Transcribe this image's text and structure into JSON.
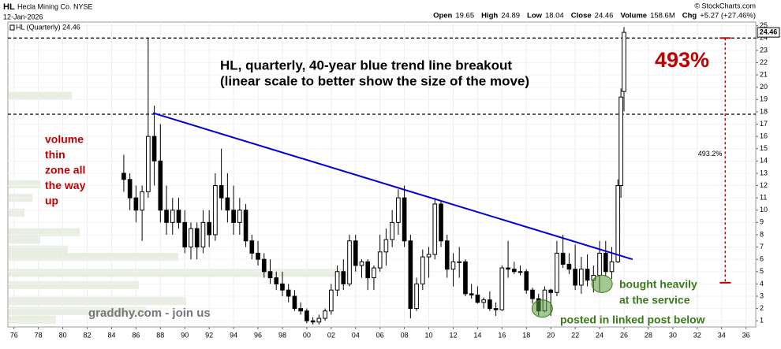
{
  "chart_data": {
    "type": "candlestick",
    "header": {
      "symbol": "HL",
      "company": "Hecla Mining Co. NYSE",
      "date": "12-Jan-2026",
      "copyright": "© StockCharts.com",
      "quote": [
        {
          "label": "Open",
          "value": "19.65"
        },
        {
          "label": "High",
          "value": "24.89"
        },
        {
          "label": "Low",
          "value": "18.04"
        },
        {
          "label": "Close",
          "value": "24.46"
        },
        {
          "label": "Volume",
          "value": "158.6M"
        },
        {
          "label": "Chg",
          "value": "+5.27 (+27.46%)"
        }
      ]
    },
    "legend": "HL (Quarterly) 24.46",
    "last_price": {
      "value": 24.46,
      "label": "24.46"
    },
    "title": [
      "HL, quarterly, 40-year blue trend line breakout",
      "(linear scale to better show the size of the move)"
    ],
    "annotations": {
      "gain": "493%",
      "volume_note": [
        "volume",
        "thin",
        "zone all",
        "the way",
        "up"
      ],
      "site": "graddhy.com - join us",
      "bought": [
        "bought heavily",
        "at the service"
      ],
      "posted": "posted in linked post below"
    },
    "xlim": [
      1975.5,
      2036.8
    ],
    "ylim": [
      0.5,
      25.3
    ],
    "xticks": [
      {
        "value": 1976,
        "label": "76"
      },
      {
        "value": 1978,
        "label": "78"
      },
      {
        "value": 1980,
        "label": "80"
      },
      {
        "value": 1982,
        "label": "82"
      },
      {
        "value": 1984,
        "label": "84"
      },
      {
        "value": 1986,
        "label": "86"
      },
      {
        "value": 1988,
        "label": "88"
      },
      {
        "value": 1990,
        "label": "90"
      },
      {
        "value": 1992,
        "label": "92"
      },
      {
        "value": 1994,
        "label": "94"
      },
      {
        "value": 1996,
        "label": "96"
      },
      {
        "value": 1998,
        "label": "98"
      },
      {
        "value": 2000,
        "label": "00"
      },
      {
        "value": 2002,
        "label": "02"
      },
      {
        "value": 2004,
        "label": "04"
      },
      {
        "value": 2006,
        "label": "06"
      },
      {
        "value": 2008,
        "label": "08"
      },
      {
        "value": 2010,
        "label": "10"
      },
      {
        "value": 2012,
        "label": "12"
      },
      {
        "value": 2014,
        "label": "14"
      },
      {
        "value": 2016,
        "label": "16"
      },
      {
        "value": 2018,
        "label": "18"
      },
      {
        "value": 2020,
        "label": "20"
      },
      {
        "value": 2022,
        "label": "22"
      },
      {
        "value": 2024,
        "label": "24"
      },
      {
        "value": 2026,
        "label": "26"
      },
      {
        "value": 2028,
        "label": "28"
      },
      {
        "value": 2030,
        "label": "30"
      },
      {
        "value": 2032,
        "label": "32"
      },
      {
        "value": 2034,
        "label": "34"
      },
      {
        "value": 2036,
        "label": "36"
      }
    ],
    "yticks": [
      1,
      2,
      3,
      4,
      5,
      6,
      7,
      8,
      9,
      10,
      11,
      12,
      13,
      14,
      15,
      16,
      17,
      18,
      19,
      20,
      21,
      22,
      23,
      24,
      25
    ],
    "grid": true,
    "x": [
      1985,
      1985.5,
      1986,
      1986.5,
      1987,
      1987.5,
      1988,
      1988.5,
      1989,
      1989.5,
      1990,
      1990.5,
      1991,
      1991.5,
      1992,
      1992.5,
      1993,
      1993.5,
      1994,
      1994.5,
      1995,
      1995.5,
      1996,
      1996.5,
      1997,
      1997.5,
      1998,
      1998.5,
      1999,
      1999.5,
      2000,
      2000.5,
      2001,
      2001.5,
      2002,
      2002.5,
      2003,
      2003.5,
      2004,
      2004.5,
      2005,
      2005.5,
      2006,
      2006.5,
      2007,
      2007.5,
      2008,
      2008.5,
      2009,
      2009.5,
      2010,
      2010.5,
      2011,
      2011.5,
      2012,
      2012.5,
      2013,
      2013.5,
      2014,
      2014.5,
      2015,
      2015.5,
      2016,
      2016.5,
      2017,
      2017.5,
      2018,
      2018.5,
      2019,
      2019.5,
      2020,
      2020.5,
      2021,
      2021.5,
      2022,
      2022.5,
      2023,
      2023.5,
      2024,
      2024.5,
      2025,
      2025.5,
      2025.75,
      2026
    ],
    "open": [
      13,
      12.5,
      11,
      10,
      11.5,
      16,
      14,
      10,
      9,
      10,
      9,
      7,
      8.5,
      7,
      9,
      8,
      12,
      11,
      10,
      9,
      10,
      7.5,
      6.5,
      6,
      5,
      4.5,
      4,
      3.5,
      3,
      2,
      1.8,
      1,
      0.9,
      1.2,
      1.8,
      3.5,
      5,
      4,
      7.5,
      5.5,
      5.8,
      4.5,
      5.3,
      6.6,
      7.6,
      9,
      11,
      7.5,
      2,
      4,
      6.2,
      6.4,
      10.5,
      7.5,
      5.2,
      5.8,
      5.8,
      3.2,
      3.1,
      2.5,
      2.7,
      2,
      1.9,
      5.3,
      5.2,
      5,
      5,
      3.5,
      2.8,
      1.8,
      3.5,
      3.3,
      6.5,
      5.6,
      5.2,
      3.9,
      5.2,
      4.3,
      4.7,
      6.5,
      5,
      5.8,
      12,
      19.65
    ],
    "high": [
      14.5,
      13,
      12,
      12,
      24,
      18.5,
      17,
      12,
      11,
      11,
      10,
      9,
      9,
      10,
      10,
      13,
      15,
      13,
      12,
      11,
      10.5,
      8,
      7.5,
      6.5,
      6,
      5,
      5,
      4,
      3.5,
      2.5,
      2,
      1.3,
      1.5,
      2,
      4,
      5.5,
      6,
      8,
      8,
      6,
      6,
      5.5,
      8,
      8.5,
      10,
      11.7,
      12,
      8,
      4.5,
      6.8,
      7,
      11,
      10.8,
      8,
      6.5,
      7,
      6,
      4,
      3.8,
      2.9,
      3.4,
      2.5,
      5.5,
      7.5,
      5.8,
      5.5,
      5.2,
      3.7,
      3.2,
      3.8,
      3.6,
      7.5,
      8,
      6.5,
      7.2,
      6.2,
      6.4,
      5.5,
      7.5,
      7.5,
      7,
      12.5,
      19.9,
      24.89
    ],
    "low": [
      11.5,
      10,
      9,
      7.5,
      11,
      12,
      9,
      8,
      8,
      8.5,
      6.5,
      6,
      6,
      6.5,
      7,
      7.5,
      10,
      9,
      8,
      8,
      7,
      6,
      5.5,
      4.5,
      4,
      3.5,
      3,
      2.5,
      1.8,
      1.5,
      0.8,
      0.7,
      0.7,
      1,
      1.5,
      3,
      3.5,
      3.8,
      5,
      4.5,
      3.5,
      3.5,
      5,
      5.5,
      7,
      8,
      7,
      1.2,
      1.8,
      3.5,
      4.5,
      6,
      7,
      4.5,
      3.8,
      4.5,
      3,
      2.8,
      2.4,
      2,
      1.8,
      1.4,
      1.8,
      4.5,
      4.8,
      4.7,
      3.2,
      2.4,
      1.4,
      1.7,
      1.4,
      3,
      5.3,
      4.8,
      3.5,
      3.2,
      3.8,
      3.3,
      3.4,
      4.6,
      4.4,
      5.7,
      11,
      18.04
    ],
    "close": [
      12.5,
      11,
      10,
      11.5,
      16,
      14,
      10,
      9,
      10,
      9,
      7,
      8.5,
      7,
      9,
      8,
      12,
      11,
      10,
      9,
      10,
      7.5,
      6.5,
      6,
      5,
      4.5,
      4,
      3.5,
      3,
      2,
      1.8,
      1,
      0.9,
      1.2,
      1.8,
      3.5,
      5,
      4,
      7.5,
      5.5,
      5.8,
      4.5,
      5.3,
      6.6,
      7.6,
      9,
      11,
      7.5,
      2,
      4,
      6.2,
      6.4,
      10.5,
      7.5,
      5.2,
      5.8,
      5.8,
      3.2,
      3.1,
      2.5,
      2.7,
      2,
      1.9,
      5.3,
      5.2,
      5,
      5,
      3.5,
      2.8,
      1.8,
      3.5,
      3.3,
      6.5,
      5.6,
      5.2,
      3.9,
      5.2,
      4.3,
      4.7,
      6.5,
      5,
      5.8,
      12,
      19.2,
      24.46
    ],
    "volume_by_price": {
      "levels": [
        19.3,
        12.1,
        11.0,
        9.8,
        8.2,
        7.6,
        6.8,
        6.2,
        4.9,
        3.9,
        2.6,
        1.8,
        1.1
      ],
      "values": [
        80,
        40,
        30,
        20,
        90,
        40,
        75,
        215,
        430,
        165,
        225,
        175,
        60
      ]
    },
    "levels": [
      24.0,
      17.8
    ],
    "trend_line": {
      "x": [
        1987.4,
        2026.7
      ],
      "y": [
        17.9,
        6.0
      ]
    },
    "measure": {
      "x": 2034.3,
      "from": 24.0,
      "to": 4.1,
      "label": "493.2%"
    },
    "highlights": [
      {
        "x": 2019.3,
        "y": 2.0
      },
      {
        "x": 2024.2,
        "y": 4.0
      }
    ]
  }
}
